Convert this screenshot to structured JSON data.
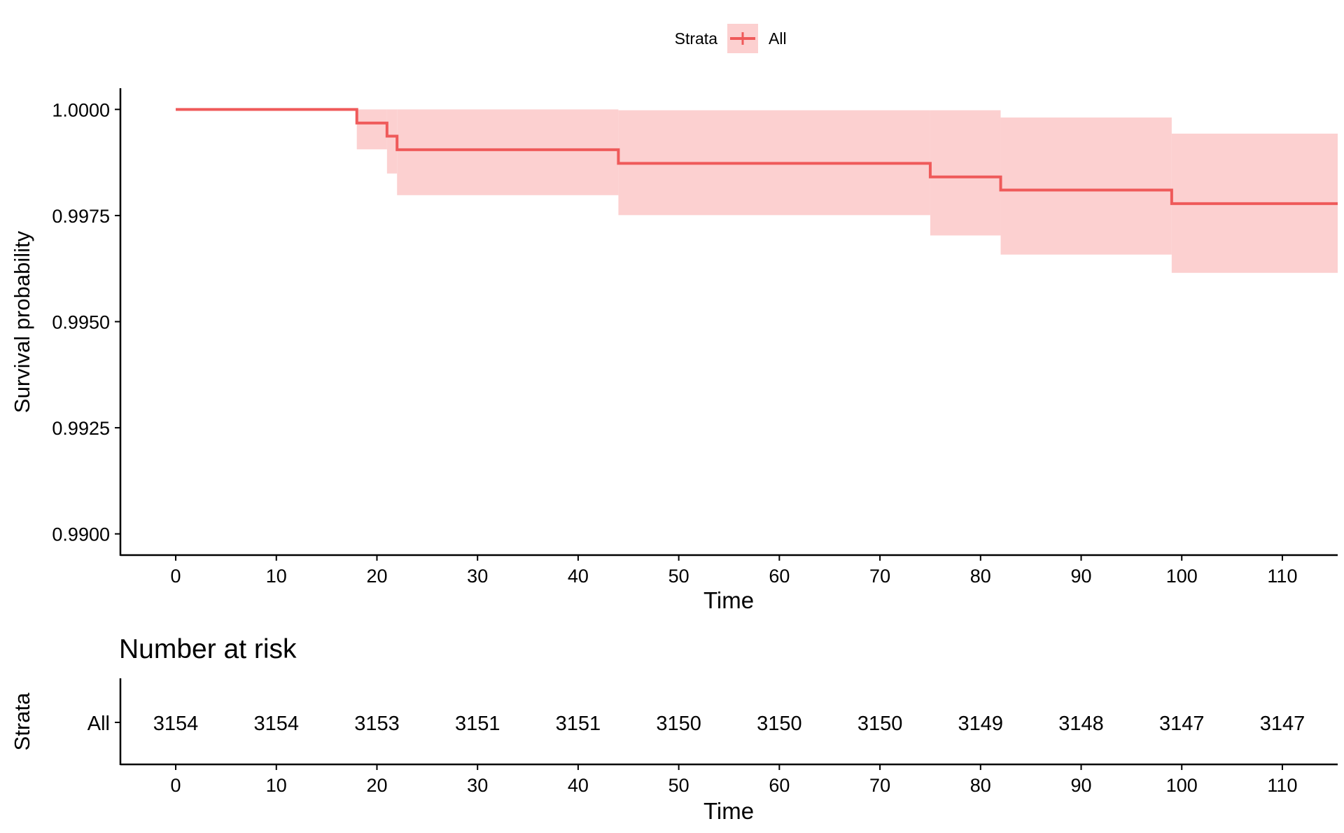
{
  "legend": {
    "title": "Strata",
    "placement": "top",
    "entries": [
      {
        "name": "All",
        "color": "#EF5A5A",
        "fill": "#FCD0D0"
      }
    ]
  },
  "chart_data": [
    {
      "type": "line",
      "subtype": "step",
      "xlabel": "Time",
      "ylabel": "Survival probability",
      "xlim": [
        -5.5,
        115.5
      ],
      "ylim": [
        0.9895,
        1.0005
      ],
      "xticks": [
        0,
        10,
        20,
        30,
        40,
        50,
        60,
        70,
        80,
        90,
        100,
        110
      ],
      "yticks": [
        0.99,
        0.9925,
        0.995,
        0.9975,
        1.0
      ],
      "ytick_labels": [
        "0.9900",
        "0.9925",
        "0.9950",
        "0.9975",
        "1.0000"
      ],
      "grid": false,
      "series": [
        {
          "name": "All",
          "color": "#EF5A5A",
          "band_color": "#FCD0D0",
          "steps": [
            {
              "x": 0,
              "y": 1.0,
              "lower": 1.0,
              "upper": 1.0
            },
            {
              "x": 18,
              "y": 0.99968,
              "lower": 0.99906,
              "upper": 1.0
            },
            {
              "x": 21,
              "y": 0.99937,
              "lower": 0.99849,
              "upper": 1.0
            },
            {
              "x": 22,
              "y": 0.99905,
              "lower": 0.99798,
              "upper": 1.0
            },
            {
              "x": 44,
              "y": 0.99873,
              "lower": 0.99751,
              "upper": 0.99998
            },
            {
              "x": 75,
              "y": 0.99841,
              "lower": 0.99703,
              "upper": 0.99998
            },
            {
              "x": 82,
              "y": 0.9981,
              "lower": 0.99658,
              "upper": 0.99981
            },
            {
              "x": 99,
              "y": 0.99778,
              "lower": 0.99615,
              "upper": 0.99943
            }
          ],
          "x_end": 115.5
        }
      ]
    },
    {
      "type": "table",
      "title": "Number at risk",
      "xlabel": "Time",
      "ylabel": "Strata",
      "xlim": [
        -5.5,
        115.5
      ],
      "xticks": [
        0,
        10,
        20,
        30,
        40,
        50,
        60,
        70,
        80,
        90,
        100,
        110
      ],
      "rows": [
        {
          "label": "All",
          "color": "#EF5A5A",
          "values": [
            3154,
            3154,
            3153,
            3151,
            3151,
            3150,
            3150,
            3150,
            3149,
            3148,
            3147,
            3147
          ]
        }
      ]
    }
  ]
}
